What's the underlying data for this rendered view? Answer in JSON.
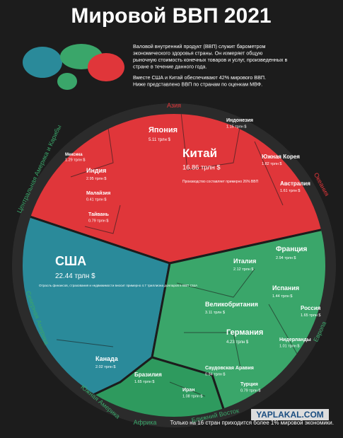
{
  "header": {
    "title": "Мировой ВВП 2021",
    "intro": [
      "Валовой внутренний продукт (ВВП) служит барометром",
      "экономического здоровья страны. Он измеряет общую",
      "рыночную стоимость конечных товаров и услуг, произведенных в",
      "стране в течение данного года.",
      "Вместе США и Китай обеспечивают 42% мирового ВВП.",
      "Ниже представлено ВВП по странам по оценкам МВФ."
    ]
  },
  "regions": [
    "Азия",
    "Океания",
    "Европа",
    "Ближний Восток",
    "Африка",
    "Южная Америка",
    "Северная Америка",
    "Центральная Америка и Карибы"
  ],
  "countries": [
    {
      "name": "Китай",
      "value": "16.86 трлн $"
    },
    {
      "name": "США",
      "value": "22.44 трлн $"
    },
    {
      "name": "Япония",
      "value": "5.11 трлн $"
    },
    {
      "name": "Индия",
      "value": "2.95 трлн $"
    },
    {
      "name": "Индонезия",
      "value": "1.15 трлн $"
    },
    {
      "name": "Южная Корея",
      "value": "1.82 трлн $"
    },
    {
      "name": "Австралия",
      "value": "1.61 трлн $"
    },
    {
      "name": "Тайвань",
      "value": "0.79 трлн $"
    },
    {
      "name": "Малайзия",
      "value": "0.41 трлн $"
    },
    {
      "name": "Франция",
      "value": "2.94 трлн $"
    },
    {
      "name": "Италия",
      "value": "2.12 трлн $"
    },
    {
      "name": "Испания",
      "value": "1.44 трлн $"
    },
    {
      "name": "Великобритания",
      "value": "3.11 трлн $"
    },
    {
      "name": "Германия",
      "value": "4.23 трлн $"
    },
    {
      "name": "Россия",
      "value": "1.65 трлн $"
    },
    {
      "name": "Нидерланды",
      "value": "1.01 трлн $"
    },
    {
      "name": "Канада",
      "value": "2.02 трлн $"
    },
    {
      "name": "Мексика",
      "value": "1.29 трлн $"
    },
    {
      "name": "Бразилия",
      "value": "1.65 трлн $"
    },
    {
      "name": "Турция",
      "value": "0.79 трлн $"
    },
    {
      "name": "Саудовская Аравия",
      "value": "0.84 трлн $"
    },
    {
      "name": "Иран",
      "value": "1.08 трлн $"
    }
  ],
  "notes": {
    "china": "Производство составляет примерно 26% ВВП",
    "usa": "Отрасль финансов, страхования и недвижимости вносит примерно 4.7 триллиона долларов в ВВП США",
    "footer": "Только на 16 стран приходится более 1% мировой экономики.",
    "watermark": "YAPLAKAL.COM"
  }
}
